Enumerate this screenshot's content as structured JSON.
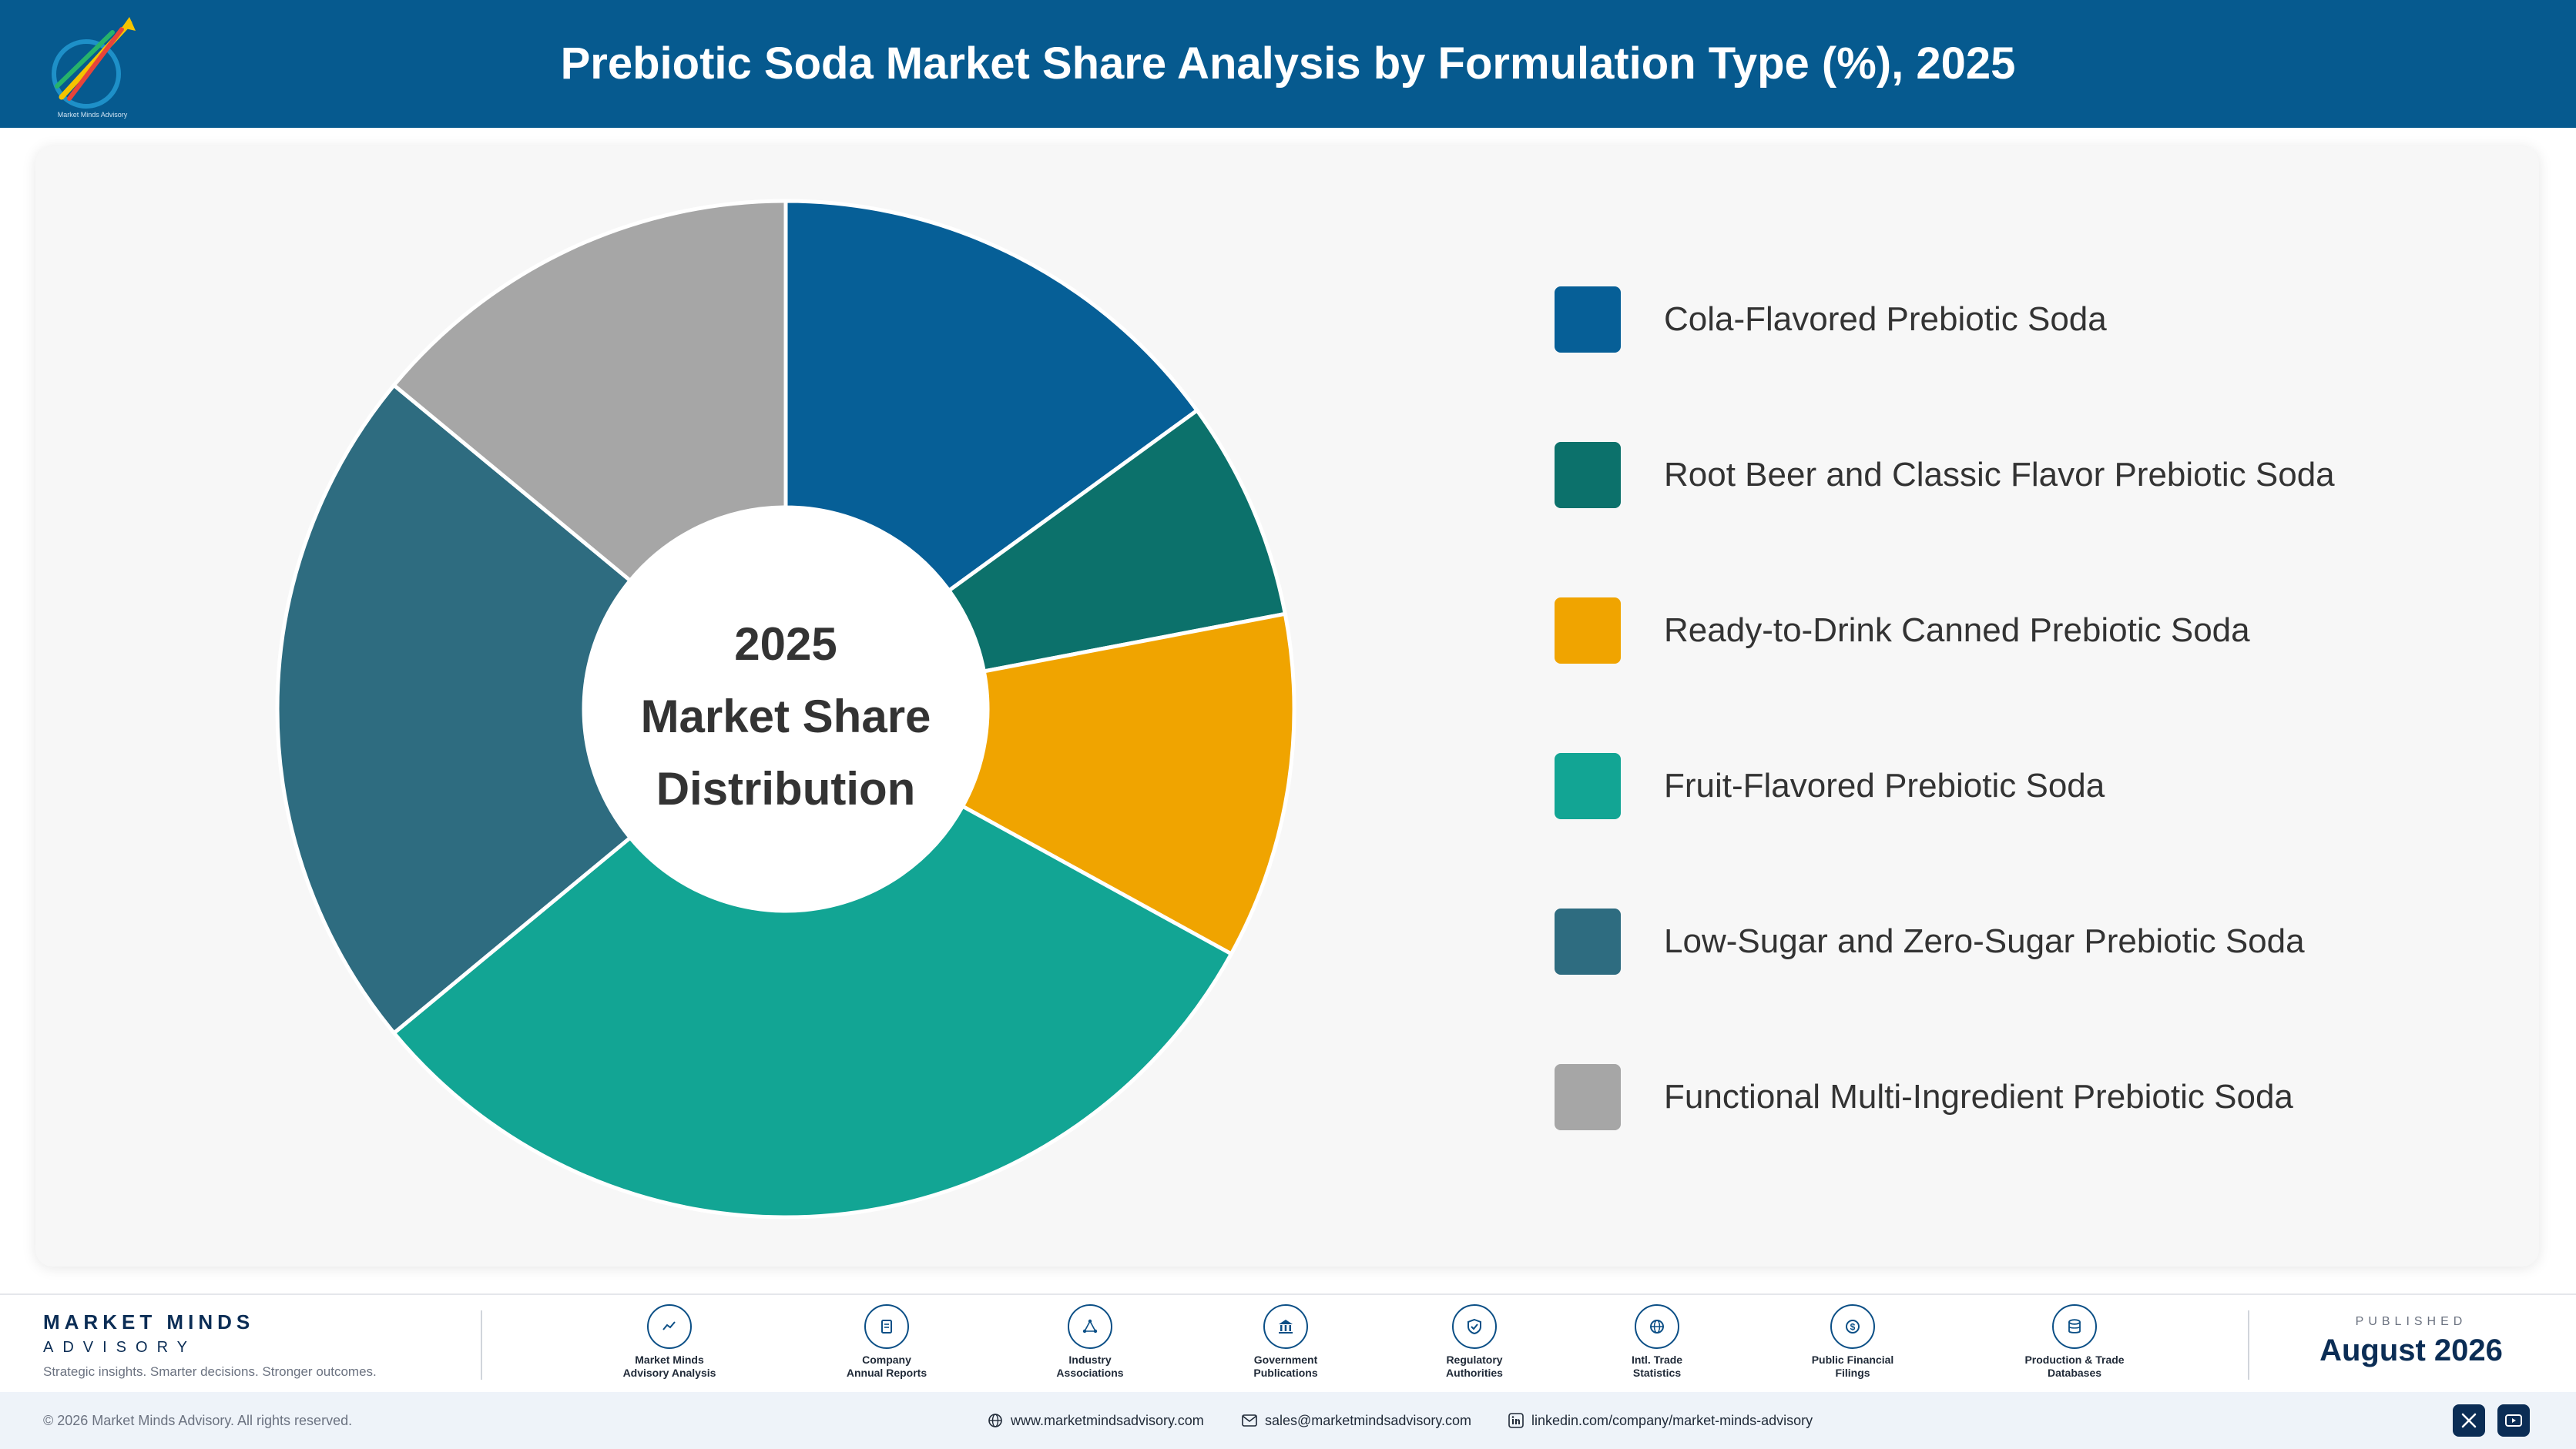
{
  "header": {
    "title": "Prebiotic Soda Market Share Analysis by Formulation Type (%), 2025"
  },
  "chart_data": {
    "type": "pie",
    "donut": true,
    "center_label": [
      "2025",
      "Market Share",
      "Distribution"
    ],
    "legend_position": "right",
    "categories": [
      "Cola-Flavored Prebiotic Soda",
      "Root Beer and Classic Flavor Prebiotic Soda",
      "Ready-to-Drink Canned Prebiotic Soda",
      "Fruit-Flavored Prebiotic Soda",
      "Low-Sugar and Zero-Sugar Prebiotic Soda",
      "Functional Multi-Ingredient Prebiotic Soda"
    ],
    "values": [
      15,
      7,
      11,
      31,
      22,
      14
    ],
    "colors": [
      "#065f97",
      "#0c716b",
      "#f0a400",
      "#12a594",
      "#2e6c80",
      "#a6a6a6"
    ]
  },
  "footer": {
    "brand_name": "MARKET MINDS",
    "brand_sub": "ADVISORY",
    "brand_tagline": "Strategic insights. Smarter decisions. Stronger outcomes.",
    "sources": [
      {
        "label": "Market Minds\nAdvisory Analysis",
        "icon": "chart-line-icon"
      },
      {
        "label": "Company\nAnnual Reports",
        "icon": "document-icon"
      },
      {
        "label": "Industry\nAssociations",
        "icon": "network-icon"
      },
      {
        "label": "Government\nPublications",
        "icon": "government-building-icon"
      },
      {
        "label": "Regulatory\nAuthorities",
        "icon": "shield-check-icon"
      },
      {
        "label": "Intl. Trade\nStatistics",
        "icon": "globe-icon"
      },
      {
        "label": "Public Financial\nFilings",
        "icon": "coin-icon"
      },
      {
        "label": "Production & Trade\nDatabases",
        "icon": "database-icon"
      }
    ],
    "published_label": "PUBLISHED",
    "published_date": "August 2026"
  },
  "bottom_bar": {
    "copyright": "© 2026 Market Minds Advisory. All rights reserved.",
    "website": "www.marketmindsadvisory.com",
    "email": "sales@marketmindsadvisory.com",
    "linkedin": "linkedin.com/company/market-minds-advisory"
  }
}
